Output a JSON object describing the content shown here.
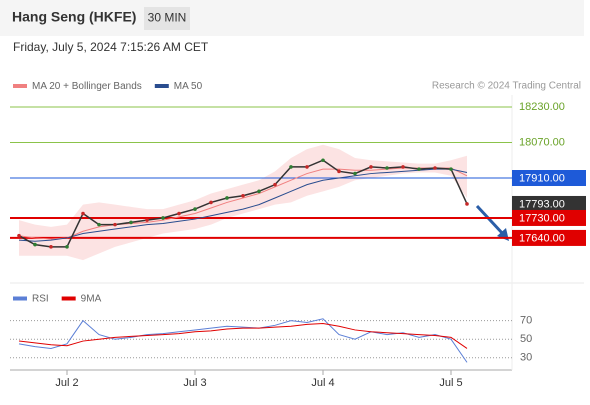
{
  "header": {
    "title": "Hang Seng (HKFE)",
    "interval": "30 MIN",
    "timestamp": "Friday, July 5, 2024 7:15:26 AM CET"
  },
  "chart_data": [
    {
      "type": "line",
      "credit": "Research © 2024 Trading Central",
      "categories": [
        null,
        null,
        null,
        "Jul 2",
        null,
        null,
        null,
        null,
        null,
        null,
        null,
        "Jul 3",
        null,
        null,
        null,
        null,
        null,
        null,
        null,
        "Jul 4",
        null,
        null,
        null,
        null,
        null,
        null,
        null,
        "Jul 5",
        null
      ],
      "close": {
        "color": "#333333",
        "values": [
          17650,
          17610,
          17600,
          17600,
          17750,
          17700,
          17700,
          17710,
          17720,
          17730,
          17750,
          17770,
          17800,
          17820,
          17830,
          17850,
          17880,
          17960,
          17960,
          17990,
          17940,
          17930,
          17960,
          17955,
          17960,
          17950,
          17955,
          17950,
          17793
        ]
      },
      "series": [
        {
          "name": "MA 20 + Bollinger Bands",
          "color": "#f08080",
          "values": [
            17650,
            17640,
            17635,
            17640,
            17670,
            17690,
            17700,
            17705,
            17710,
            17720,
            17735,
            17750,
            17775,
            17800,
            17820,
            17840,
            17870,
            17900,
            17930,
            17950,
            17950,
            17945,
            17945,
            17950,
            17955,
            17955,
            17955,
            17955,
            17920
          ],
          "upper": [
            17720,
            17700,
            17690,
            17700,
            17790,
            17800,
            17790,
            17780,
            17770,
            17770,
            17790,
            17810,
            17840,
            17860,
            17880,
            17900,
            17940,
            18000,
            18040,
            18060,
            18040,
            18000,
            17990,
            17985,
            17980,
            17975,
            17975,
            17990,
            18010
          ],
          "lower": [
            17560,
            17560,
            17560,
            17560,
            17540,
            17570,
            17600,
            17620,
            17640,
            17660,
            17670,
            17680,
            17700,
            17730,
            17750,
            17770,
            17790,
            17800,
            17830,
            17850,
            17870,
            17900,
            17910,
            17920,
            17930,
            17935,
            17935,
            17920,
            17820
          ]
        },
        {
          "name": "MA 50",
          "color": "#2a4d8f",
          "values": [
            17630,
            17625,
            17630,
            17640,
            17660,
            17670,
            17680,
            17690,
            17700,
            17705,
            17715,
            17725,
            17740,
            17755,
            17770,
            17790,
            17820,
            17850,
            17880,
            17900,
            17910,
            17920,
            17930,
            17935,
            17940,
            17945,
            17950,
            17950,
            17935
          ]
        }
      ],
      "ylim": [
        17437,
        18374
      ],
      "levels": [
        {
          "value": 18230,
          "label": "18230.00",
          "color": "#8bc34a"
        },
        {
          "value": 18070,
          "label": "18070.00",
          "color": "#8bc34a"
        },
        {
          "value": 17910,
          "label": "17910.00",
          "color": "#1e5ad8"
        },
        {
          "value": 17793,
          "label": "17793.00",
          "color": "#333333"
        },
        {
          "value": 17730,
          "label": "17730.00",
          "color": "#e00000"
        },
        {
          "value": 17640,
          "label": "17640.00",
          "color": "#e00000"
        }
      ]
    },
    {
      "type": "line",
      "series": [
        {
          "name": "RSI",
          "color": "#5b7fd6",
          "values": [
            45,
            42,
            40,
            45,
            70,
            55,
            50,
            52,
            55,
            56,
            58,
            60,
            62,
            64,
            63,
            62,
            65,
            70,
            68,
            72,
            55,
            50,
            58,
            55,
            57,
            52,
            55,
            50,
            25
          ]
        },
        {
          "name": "9MA",
          "color": "#e00000",
          "values": [
            48,
            46,
            44,
            43,
            48,
            50,
            52,
            53,
            54,
            55,
            56,
            58,
            59,
            61,
            62,
            62,
            63,
            64,
            66,
            67,
            64,
            60,
            58,
            57,
            56,
            55,
            54,
            52,
            40
          ]
        }
      ],
      "ylim": [
        20,
        88
      ],
      "yticks": [
        70,
        50,
        30
      ]
    }
  ]
}
